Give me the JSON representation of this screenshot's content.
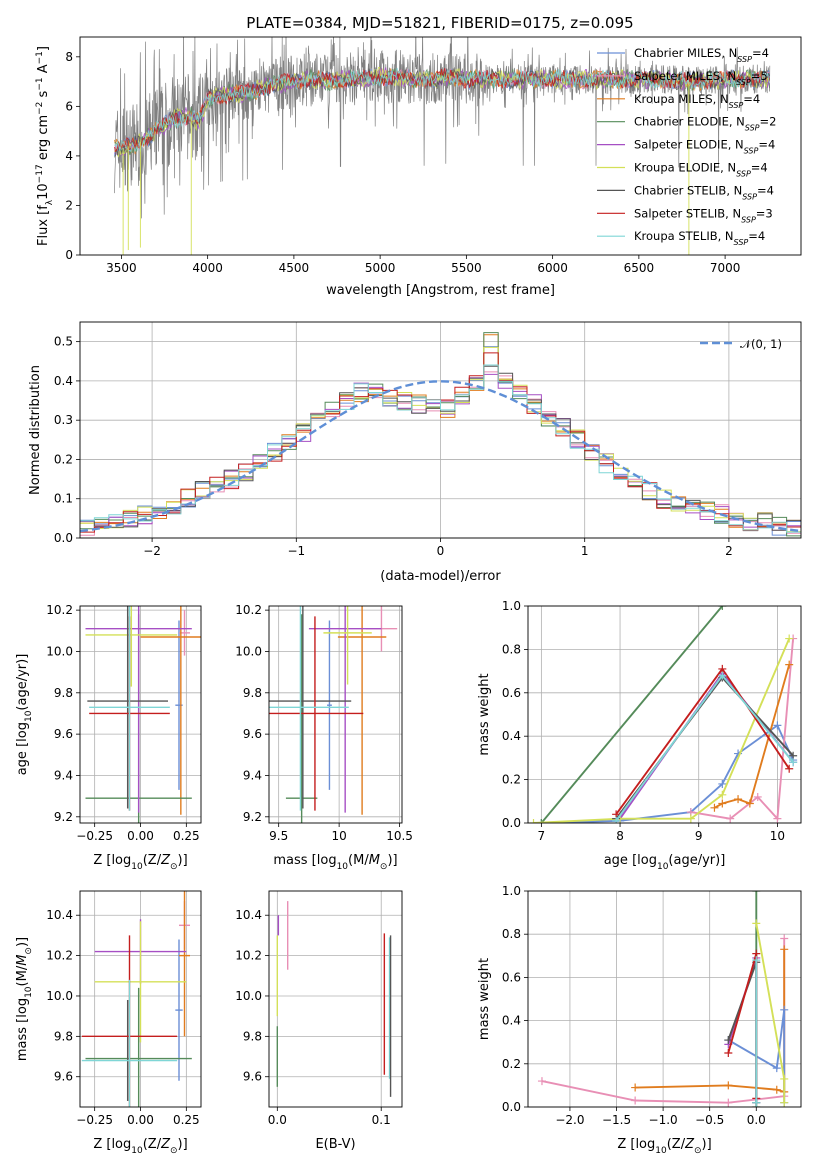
{
  "figure": {
    "title": "PLATE=0384, MJD=51821, FIBERID=0175, z=0.095"
  },
  "colors": {
    "Chabrier MILES": "#6b8fd6",
    "Salpeter MILES": "#e88fb5",
    "Kroupa MILES": "#e07c1e",
    "Chabrier ELODIE": "#558b5a",
    "Salpeter ELODIE": "#a64fc4",
    "Kroupa ELODIE": "#d4e058",
    "Chabrier STELIB": "#555555",
    "Salpeter STELIB": "#c41e1e",
    "Kroupa STELIB": "#7fd6d6",
    "data": "#808080",
    "normal": "#5f8fd6"
  },
  "chart_data": [
    {
      "id": "spectrum",
      "type": "line",
      "xlabel": "wavelength [Angstrom, rest frame]",
      "ylabel": "Flux [f_λ10^-17 erg cm^-2 s^-1 A^-1]",
      "xlim": [
        3260,
        7440
      ],
      "ylim": [
        0,
        8.8
      ],
      "xticks": [
        3500,
        4000,
        4500,
        5000,
        5500,
        6000,
        6500,
        7000
      ],
      "yticks": [
        0,
        2,
        4,
        6,
        8
      ],
      "grid": false,
      "legend_position": "top-right",
      "legend": [
        {
          "label": "Chabrier MILES, N",
          "sub": "SSP",
          "tail": "=4"
        },
        {
          "label": "Salpeter MILES, N",
          "sub": "SSP",
          "tail": "=5"
        },
        {
          "label": "Kroupa MILES, N",
          "sub": "SSP",
          "tail": "=4"
        },
        {
          "label": "Chabrier ELODIE, N",
          "sub": "SSP",
          "tail": "=2"
        },
        {
          "label": "Salpeter ELODIE, N",
          "sub": "SSP",
          "tail": "=4"
        },
        {
          "label": "Kroupa ELODIE, N",
          "sub": "SSP",
          "tail": "=4"
        },
        {
          "label": "Chabrier STELIB, N",
          "sub": "SSP",
          "tail": "=4"
        },
        {
          "label": "Salpeter STELIB, N",
          "sub": "SSP",
          "tail": "=3"
        },
        {
          "label": "Kroupa STELIB, N",
          "sub": "SSP",
          "tail": "=4"
        }
      ],
      "continuum": {
        "x": [
          3460,
          3500,
          3600,
          3700,
          3800,
          3900,
          3950,
          4000,
          4100,
          4200,
          4300,
          4400,
          4500,
          4600,
          4700,
          4800,
          4900,
          5000,
          5100,
          5200,
          5300,
          5400,
          5500,
          5600,
          5800,
          6000,
          6200,
          6400,
          6600,
          6800,
          7000,
          7200,
          7260
        ],
        "y": [
          4.3,
          4.3,
          4.5,
          5.0,
          5.5,
          5.6,
          5.4,
          6.3,
          6.5,
          6.5,
          6.7,
          6.9,
          7.0,
          7.1,
          7.0,
          7.1,
          7.1,
          7.2,
          7.2,
          7.1,
          7.1,
          7.2,
          7.1,
          7.1,
          7.1,
          7.1,
          7.1,
          7.1,
          7.1,
          7.0,
          7.1,
          7.1,
          7.1
        ]
      }
    },
    {
      "id": "residuals",
      "type": "line",
      "xlabel": "(data-model)/error",
      "ylabel": "Normed distribution",
      "xlim": [
        -2.5,
        2.5
      ],
      "ylim": [
        0,
        0.55
      ],
      "xticks": [
        -2,
        -1,
        0,
        1,
        2
      ],
      "yticks": [
        0.0,
        0.1,
        0.2,
        0.3,
        0.4,
        0.5
      ],
      "grid": true,
      "legend_position": "top-right",
      "legend_label": "𝒩(0, 1)",
      "bin_edges_start": -2.5,
      "bin_width": 0.1,
      "base_hist": [
        0.03,
        0.04,
        0.05,
        0.05,
        0.06,
        0.07,
        0.08,
        0.1,
        0.12,
        0.14,
        0.15,
        0.17,
        0.19,
        0.22,
        0.25,
        0.27,
        0.3,
        0.33,
        0.35,
        0.37,
        0.37,
        0.36,
        0.35,
        0.34,
        0.34,
        0.33,
        0.36,
        0.4,
        0.41,
        0.4,
        0.37,
        0.34,
        0.31,
        0.28,
        0.25,
        0.22,
        0.19,
        0.17,
        0.15,
        0.12,
        0.1,
        0.09,
        0.08,
        0.07,
        0.06,
        0.05,
        0.04,
        0.04,
        0.03,
        0.03
      ],
      "peak": {
        "x": 0.3,
        "y": 0.52
      }
    },
    {
      "id": "age-vs-Z",
      "type": "scatter",
      "xlabel": "Z [log10(Z/Z⊙)]",
      "ylabel": "age  [log10(age/yr)]",
      "xlim": [
        -0.33,
        0.33
      ],
      "ylim": [
        9.17,
        10.22
      ],
      "xticks": [
        -0.25,
        0.0,
        0.25
      ],
      "yticks": [
        9.2,
        9.4,
        9.6,
        9.8,
        10.0,
        10.2
      ],
      "xtick_labels": [
        "−0.25",
        "0.00",
        "0.25"
      ],
      "grid": true,
      "points": [
        {
          "model": "Chabrier MILES",
          "x": 0.21,
          "xerr": 0.02,
          "y": 9.74,
          "yerr": 0.41
        },
        {
          "model": "Salpeter MILES",
          "x": 0.24,
          "xerr": 0.03,
          "y": 10.09,
          "yerr": 0.11
        },
        {
          "model": "Kroupa MILES",
          "x": 0.22,
          "xerr": 0.22,
          "y": 10.07,
          "yerr": 0.86
        },
        {
          "model": "Chabrier ELODIE",
          "x": -0.01,
          "xerr": 0.29,
          "y": 9.29,
          "yerr": 0.89
        },
        {
          "model": "Salpeter ELODIE",
          "x": -0.01,
          "xerr": 0.29,
          "y": 10.11,
          "yerr": 0.89
        },
        {
          "model": "Kroupa ELODIE",
          "x": -0.05,
          "xerr": 0.25,
          "y": 10.08,
          "yerr": 0.25
        },
        {
          "model": "Chabrier STELIB",
          "x": -0.07,
          "xerr": 0.22,
          "y": 9.76,
          "yerr": 0.52
        },
        {
          "model": "Salpeter STELIB",
          "x": -0.06,
          "xerr": 0.22,
          "y": 9.7,
          "yerr": 0.47
        },
        {
          "model": "Kroupa STELIB",
          "x": -0.06,
          "xerr": 0.22,
          "y": 9.73,
          "yerr": 0.5
        }
      ]
    },
    {
      "id": "age-vs-mass",
      "type": "scatter",
      "xlabel": "mass [log10(M/M⊙)]",
      "ylabel": "",
      "xlim": [
        9.42,
        10.52
      ],
      "ylim": [
        9.17,
        10.22
      ],
      "xticks": [
        9.5,
        10.0,
        10.5
      ],
      "yticks": [
        9.2,
        9.4,
        9.6,
        9.8,
        10.0,
        10.2
      ],
      "grid": true,
      "points": [
        {
          "model": "Chabrier MILES",
          "x": 9.92,
          "xerr": 0.02,
          "y": 9.74,
          "yerr": 0.41
        },
        {
          "model": "Salpeter MILES",
          "x": 10.35,
          "xerr": 0.13,
          "y": 10.11,
          "yerr": 0.11
        },
        {
          "model": "Kroupa MILES",
          "x": 10.19,
          "xerr": 0.2,
          "y": 10.07,
          "yerr": 0.86
        },
        {
          "model": "Chabrier ELODIE",
          "x": 9.69,
          "xerr": 0.13,
          "y": 9.29,
          "yerr": 0.89
        },
        {
          "model": "Salpeter ELODIE",
          "x": 10.05,
          "xerr": 0.3,
          "y": 10.11,
          "yerr": 0.89
        },
        {
          "model": "Kroupa ELODIE",
          "x": 10.07,
          "xerr": 0.2,
          "y": 10.09,
          "yerr": 0.25
        },
        {
          "model": "Chabrier STELIB",
          "x": 9.7,
          "xerr": 0.4,
          "y": 9.76,
          "yerr": 0.52
        },
        {
          "model": "Salpeter STELIB",
          "x": 9.8,
          "xerr": 0.4,
          "y": 9.7,
          "yerr": 0.47
        },
        {
          "model": "Kroupa STELIB",
          "x": 9.68,
          "xerr": 0.4,
          "y": 9.73,
          "yerr": 0.5
        }
      ]
    },
    {
      "id": "massweight-vs-age",
      "type": "line",
      "xlabel": "age  [log10(age/yr)]",
      "ylabel": "mass weight",
      "xlim": [
        6.83,
        10.3
      ],
      "ylim": [
        0,
        1.0
      ],
      "xticks": [
        7,
        8,
        9,
        10
      ],
      "yticks": [
        0.0,
        0.2,
        0.4,
        0.6,
        0.8,
        1.0
      ],
      "grid": true,
      "series": [
        {
          "name": "Chabrier MILES",
          "x": [
            7.0,
            8.0,
            8.9,
            9.3,
            9.5,
            10.0,
            10.2
          ],
          "y": [
            0.0,
            0.01,
            0.05,
            0.18,
            0.32,
            0.45,
            0.29
          ]
        },
        {
          "name": "Salpeter MILES",
          "x": [
            8.9,
            9.4,
            9.75,
            10.0,
            10.2
          ],
          "y": [
            0.05,
            0.02,
            0.12,
            0.02,
            0.85
          ]
        },
        {
          "name": "Kroupa MILES",
          "x": [
            9.2,
            9.3,
            9.5,
            9.65,
            10.15
          ],
          "y": [
            0.07,
            0.09,
            0.11,
            0.09,
            0.73
          ]
        },
        {
          "name": "Chabrier ELODIE",
          "x": [
            7.0,
            9.3
          ],
          "y": [
            0.0,
            1.0
          ]
        },
        {
          "name": "Salpeter ELODIE",
          "x": [
            8.0,
            9.3,
            10.2
          ],
          "y": [
            0.02,
            0.69,
            0.28
          ]
        },
        {
          "name": "Kroupa ELODIE",
          "x": [
            6.9,
            8.0,
            8.9,
            9.3,
            10.15
          ],
          "y": [
            0.0,
            0.02,
            0.02,
            0.13,
            0.85
          ]
        },
        {
          "name": "Chabrier STELIB",
          "x": [
            7.95,
            9.3,
            10.2
          ],
          "y": [
            0.02,
            0.67,
            0.31
          ]
        },
        {
          "name": "Salpeter STELIB",
          "x": [
            7.95,
            9.3,
            10.15
          ],
          "y": [
            0.04,
            0.71,
            0.25
          ]
        },
        {
          "name": "Kroupa STELIB",
          "x": [
            7.95,
            9.3,
            10.2
          ],
          "y": [
            0.01,
            0.68,
            0.28
          ]
        }
      ]
    },
    {
      "id": "mass-vs-Z",
      "type": "scatter",
      "xlabel": "Z [log10(Z/Z⊙)]",
      "ylabel": "mass [log10(M/M⊙)]",
      "xlim": [
        -0.33,
        0.33
      ],
      "ylim": [
        9.45,
        10.52
      ],
      "xticks": [
        -0.25,
        0.0,
        0.25
      ],
      "yticks": [
        9.6,
        9.8,
        10.0,
        10.2,
        10.4
      ],
      "xtick_labels": [
        "−0.25",
        "0.00",
        "0.25"
      ],
      "grid": true,
      "points": [
        {
          "model": "Chabrier MILES",
          "x": 0.21,
          "xerr": 0.02,
          "y": 9.93,
          "yerr": 0.35
        },
        {
          "model": "Salpeter MILES",
          "x": 0.24,
          "xerr": 0.03,
          "y": 10.35,
          "yerr": 0.12
        },
        {
          "model": "Kroupa MILES",
          "x": 0.24,
          "xerr": 0.03,
          "y": 10.2,
          "yerr": 0.4
        },
        {
          "model": "Chabrier ELODIE",
          "x": -0.01,
          "xerr": 0.29,
          "y": 9.69,
          "yerr": 0.35
        },
        {
          "model": "Salpeter ELODIE",
          "x": 0.0,
          "xerr": 0.25,
          "y": 10.22,
          "yerr": 0.16
        },
        {
          "model": "Kroupa ELODIE",
          "x": 0.0,
          "xerr": 0.25,
          "y": 10.07,
          "yerr": 0.3
        },
        {
          "model": "Chabrier STELIB",
          "x": -0.07,
          "xerr": 0.0,
          "y": 9.73,
          "yerr": 0.25
        },
        {
          "model": "Salpeter STELIB",
          "x": -0.06,
          "xerr": 0.26,
          "y": 9.8,
          "yerr": 0.5
        },
        {
          "model": "Kroupa STELIB",
          "x": -0.06,
          "xerr": 0.26,
          "y": 9.68,
          "yerr": 0.4
        }
      ]
    },
    {
      "id": "mass-vs-ebv",
      "type": "scatter",
      "xlabel": "E(B-V)",
      "ylabel": "",
      "xlim": [
        -0.008,
        0.12
      ],
      "ylim": [
        9.45,
        10.52
      ],
      "xticks": [
        0.0,
        0.1
      ],
      "yticks": [
        9.6,
        9.8,
        10.0,
        10.2,
        10.4
      ],
      "xtick_labels": [
        "0.0",
        "0.1"
      ],
      "grid": true,
      "points": [
        {
          "model": "Salpeter MILES",
          "x": 0.01,
          "xerr": 0,
          "y": 10.3,
          "yerr": 0.17
        },
        {
          "model": "Salpeter ELODIE",
          "x": 0.001,
          "xerr": 0,
          "y": 10.35,
          "yerr": 0.05
        },
        {
          "model": "Kroupa ELODIE",
          "x": 0.0,
          "xerr": 0,
          "y": 10.1,
          "yerr": 0.2
        },
        {
          "model": "Chabrier ELODIE",
          "x": 0.0,
          "xerr": 0,
          "y": 9.7,
          "yerr": 0.15
        },
        {
          "model": "Salpeter STELIB",
          "x": 0.103,
          "xerr": 0,
          "y": 9.96,
          "yerr": 0.35
        },
        {
          "model": "Kroupa STELIB",
          "x": 0.108,
          "xerr": 0,
          "y": 9.94,
          "yerr": 0.35
        },
        {
          "model": "Chabrier STELIB",
          "x": 0.109,
          "xerr": 0,
          "y": 9.9,
          "yerr": 0.4
        }
      ]
    },
    {
      "id": "massweight-vs-Z",
      "type": "line",
      "xlabel": "Z [log10(Z/Z⊙)]",
      "ylabel": "mass weight",
      "xlim": [
        -2.45,
        0.48
      ],
      "ylim": [
        0,
        1.0
      ],
      "xticks": [
        -2.0,
        -1.5,
        -1.0,
        -0.5,
        0.0
      ],
      "yticks": [
        0.0,
        0.2,
        0.4,
        0.6,
        0.8,
        1.0
      ],
      "xtick_labels": [
        "−2.0",
        "−1.5",
        "−1.0",
        "−0.5",
        "0.0"
      ],
      "grid": true,
      "series": [
        {
          "name": "Salpeter MILES",
          "x": [
            -2.3,
            -1.3,
            -0.3,
            0.3,
            0.3
          ],
          "y": [
            0.12,
            0.03,
            0.02,
            0.05,
            0.78
          ]
        },
        {
          "name": "Kroupa MILES",
          "x": [
            -1.3,
            -0.3,
            0.22,
            0.3,
            0.3
          ],
          "y": [
            0.09,
            0.1,
            0.08,
            0.07,
            0.73
          ]
        },
        {
          "name": "Chabrier MILES",
          "x": [
            -0.3,
            0.22,
            0.3,
            0.3
          ],
          "y": [
            0.31,
            0.18,
            0.45,
            0.02
          ]
        },
        {
          "name": "Chabrier ELODIE",
          "x": [
            0.0,
            0.0
          ],
          "y": [
            0.0,
            1.0
          ]
        },
        {
          "name": "Salpeter ELODIE",
          "x": [
            -0.3,
            0.0,
            0.0
          ],
          "y": [
            0.29,
            0.69,
            0.02
          ]
        },
        {
          "name": "Kroupa ELODIE",
          "x": [
            0.0,
            0.3,
            0.3
          ],
          "y": [
            0.85,
            0.13,
            0.02
          ]
        },
        {
          "name": "Chabrier STELIB",
          "x": [
            -0.3,
            0.0,
            0.0
          ],
          "y": [
            0.31,
            0.67,
            0.02
          ]
        },
        {
          "name": "Salpeter STELIB",
          "x": [
            -0.3,
            0.0,
            0.0
          ],
          "y": [
            0.25,
            0.71,
            0.04
          ]
        },
        {
          "name": "Kroupa STELIB",
          "x": [
            0.0,
            0.0
          ],
          "y": [
            0.02,
            0.68
          ]
        }
      ]
    }
  ]
}
